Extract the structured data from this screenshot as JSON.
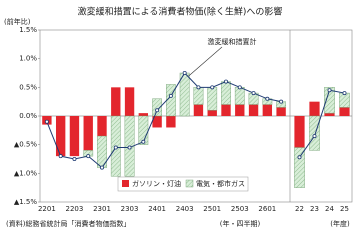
{
  "chart_data": {
    "type": "bar",
    "title": "激変緩和措置による消費者物価(除く生鮮)への影響",
    "y_label": "(前年比)",
    "x_unit_quarterly": "(年・四半期)",
    "x_unit_fiscal": "(年度)",
    "source": "(資料)総務省統計局「消費者物価指数」",
    "quarterly_count": 18,
    "categories": [
      "2201",
      null,
      "2203",
      null,
      "2301",
      null,
      "2303",
      null,
      "2401",
      null,
      "2403",
      null,
      "2501",
      null,
      "2503",
      null,
      "2601",
      null,
      "22",
      "23",
      "24",
      "25"
    ],
    "series": [
      {
        "name": "ガソリン・灯油",
        "color": "#e3262d",
        "type": "bar",
        "values": [
          -0.15,
          -0.7,
          -0.7,
          -0.6,
          -0.35,
          0.5,
          0.5,
          0.05,
          -0.2,
          -0.2,
          0.0,
          0.2,
          0.1,
          0.2,
          0.2,
          0.2,
          0.2,
          0.15,
          -0.55,
          0.25,
          0.05,
          0.15
        ]
      },
      {
        "name": "電気・都市ガス",
        "color": "#cfe8cf",
        "type": "bar",
        "values": [
          0.0,
          0.0,
          0.0,
          -0.1,
          -0.55,
          -1.05,
          -1.05,
          -0.5,
          0.3,
          0.55,
          0.75,
          0.3,
          0.4,
          0.4,
          0.3,
          0.2,
          0.1,
          0.1,
          -0.7,
          -0.6,
          0.45,
          0.25
        ]
      },
      {
        "name": "激変緩和措置計",
        "color": "#1f3b73",
        "type": "line",
        "values": [
          -0.1,
          -0.7,
          -0.75,
          -0.7,
          -0.9,
          -0.55,
          -0.55,
          -0.45,
          0.1,
          0.35,
          0.75,
          0.5,
          0.5,
          0.6,
          0.5,
          0.4,
          0.3,
          0.25,
          -0.72,
          -0.35,
          0.45,
          0.4
        ]
      }
    ],
    "ylim": [
      -1.5,
      1.5
    ],
    "yticks": [
      {
        "value": 1.5,
        "label": "1.5%"
      },
      {
        "value": 1.0,
        "label": "1.0%"
      },
      {
        "value": 0.5,
        "label": "0.5%"
      },
      {
        "value": 0,
        "label": "0.0%"
      },
      {
        "value": -0.5,
        "label": "▲0.5%"
      },
      {
        "value": -1.0,
        "label": "▲1.0%"
      },
      {
        "value": -1.5,
        "label": "▲1.5%"
      }
    ],
    "grid": false
  }
}
